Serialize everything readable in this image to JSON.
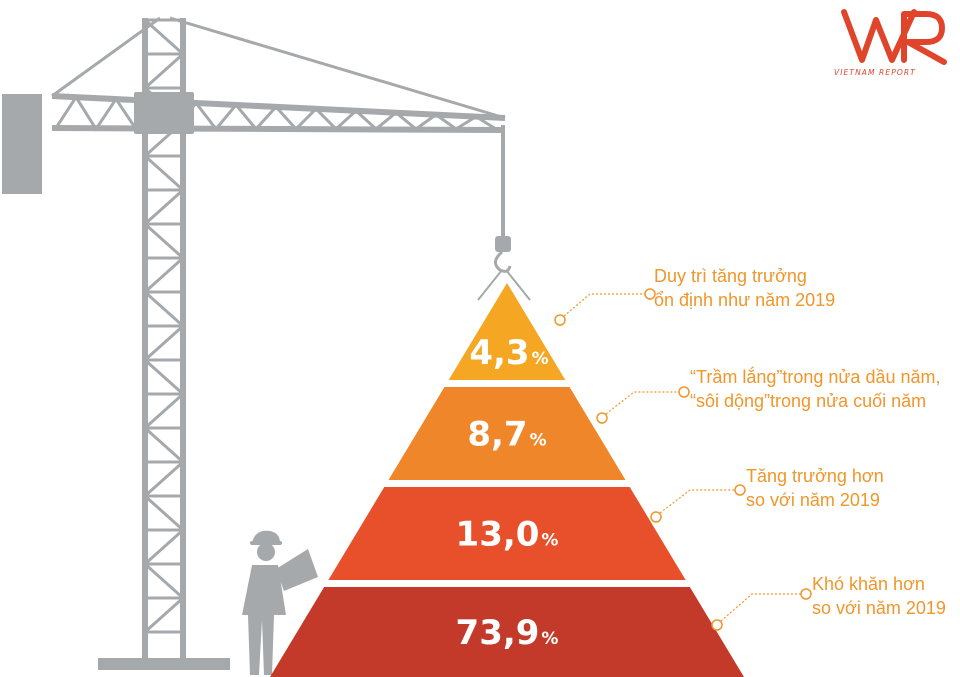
{
  "brand": {
    "logo_text": "VNR",
    "logo_subtitle": "VIETNAM REPORT",
    "color": "#e0452c"
  },
  "chart_data": {
    "type": "pyramid",
    "unit": "%",
    "levels": [
      {
        "label": "Duy trì tăng trưởng ổn định như năm 2019",
        "label_lines": [
          "Duy trì tăng trưởng",
          "ổn định như năm 2019"
        ],
        "value": 4.3,
        "value_text": "4,3",
        "color": "#f5a623"
      },
      {
        "label": "“Trầm lắng”trong nửa đầu năm, “sôi động”trong nửa cuối năm",
        "label_lines": [
          "“Trầm lắng”trong nửa dầu năm,",
          "“sôi dộng”trong nửa cuối năm"
        ],
        "value": 8.7,
        "value_text": "8,7",
        "color": "#f0862a"
      },
      {
        "label": "Tăng trưởng hơn so với năm 2019",
        "label_lines": [
          "Tăng trưởng hơn",
          "so với năm 2019"
        ],
        "value": 13.0,
        "value_text": "13,0",
        "color": "#e8502b"
      },
      {
        "label": "Khó khăn hơn so với năm 2019",
        "label_lines": [
          "Khó khăn hơn",
          "so với năm 2019"
        ],
        "value": 73.9,
        "value_text": "73,9",
        "color": "#c43a2a"
      }
    ]
  },
  "colors": {
    "crane": "#a6a9ac",
    "annotation": "#f0962a",
    "pyramid_top": "#f5a623",
    "pyramid_bottom": "#c43a2a"
  }
}
